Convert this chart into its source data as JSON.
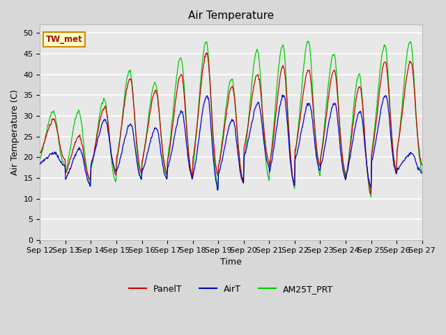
{
  "title": "Air Temperature",
  "xlabel": "Time",
  "ylabel": "Air Temperature (C)",
  "ylim": [
    0,
    52
  ],
  "yticks": [
    0,
    5,
    10,
    15,
    20,
    25,
    30,
    35,
    40,
    45,
    50
  ],
  "x_labels": [
    "Sep 12",
    "Sep 13",
    "Sep 14",
    "Sep 15",
    "Sep 16",
    "Sep 17",
    "Sep 18",
    "Sep 19",
    "Sep 20",
    "Sep 21",
    "Sep 22",
    "Sep 23",
    "Sep 24",
    "Sep 25",
    "Sep 26",
    "Sep 27"
  ],
  "annotation_text": "TW_met",
  "annotation_color": "#aa1100",
  "annotation_bg": "#ffffcc",
  "annotation_border": "#cc8800",
  "panel_color": "#cc0000",
  "air_color": "#0000cc",
  "am25t_color": "#00cc00",
  "fig_bg": "#d8d8d8",
  "plot_bg": "#e8e8e8",
  "legend_labels": [
    "PanelT",
    "AirT",
    "AM25T_PRT"
  ],
  "title_fontsize": 11,
  "axis_label_fontsize": 9,
  "tick_fontsize": 8,
  "day_maxes_panel": [
    29,
    25,
    32,
    39,
    36,
    40,
    45,
    37,
    40,
    42,
    41,
    41,
    37,
    43,
    43
  ],
  "day_mins_panel": [
    19,
    14,
    15,
    15,
    15,
    14,
    14,
    13,
    18,
    12,
    17,
    15,
    10,
    15,
    17
  ],
  "day_maxes_air": [
    21,
    22,
    29,
    28,
    27,
    31,
    35,
    29,
    33,
    35,
    33,
    33,
    31,
    35,
    21
  ],
  "day_mins_air": [
    18,
    13,
    16,
    14,
    14,
    14,
    11,
    13,
    17,
    12,
    16,
    14,
    12,
    15,
    16
  ],
  "day_maxes_am25": [
    31,
    31,
    34,
    41,
    38,
    44,
    48,
    39,
    46,
    47,
    48,
    45,
    40,
    47,
    48
  ],
  "day_mins_am25": [
    17,
    13,
    13,
    13,
    14,
    14,
    11,
    13,
    13,
    11,
    14,
    14,
    9,
    15,
    15
  ]
}
